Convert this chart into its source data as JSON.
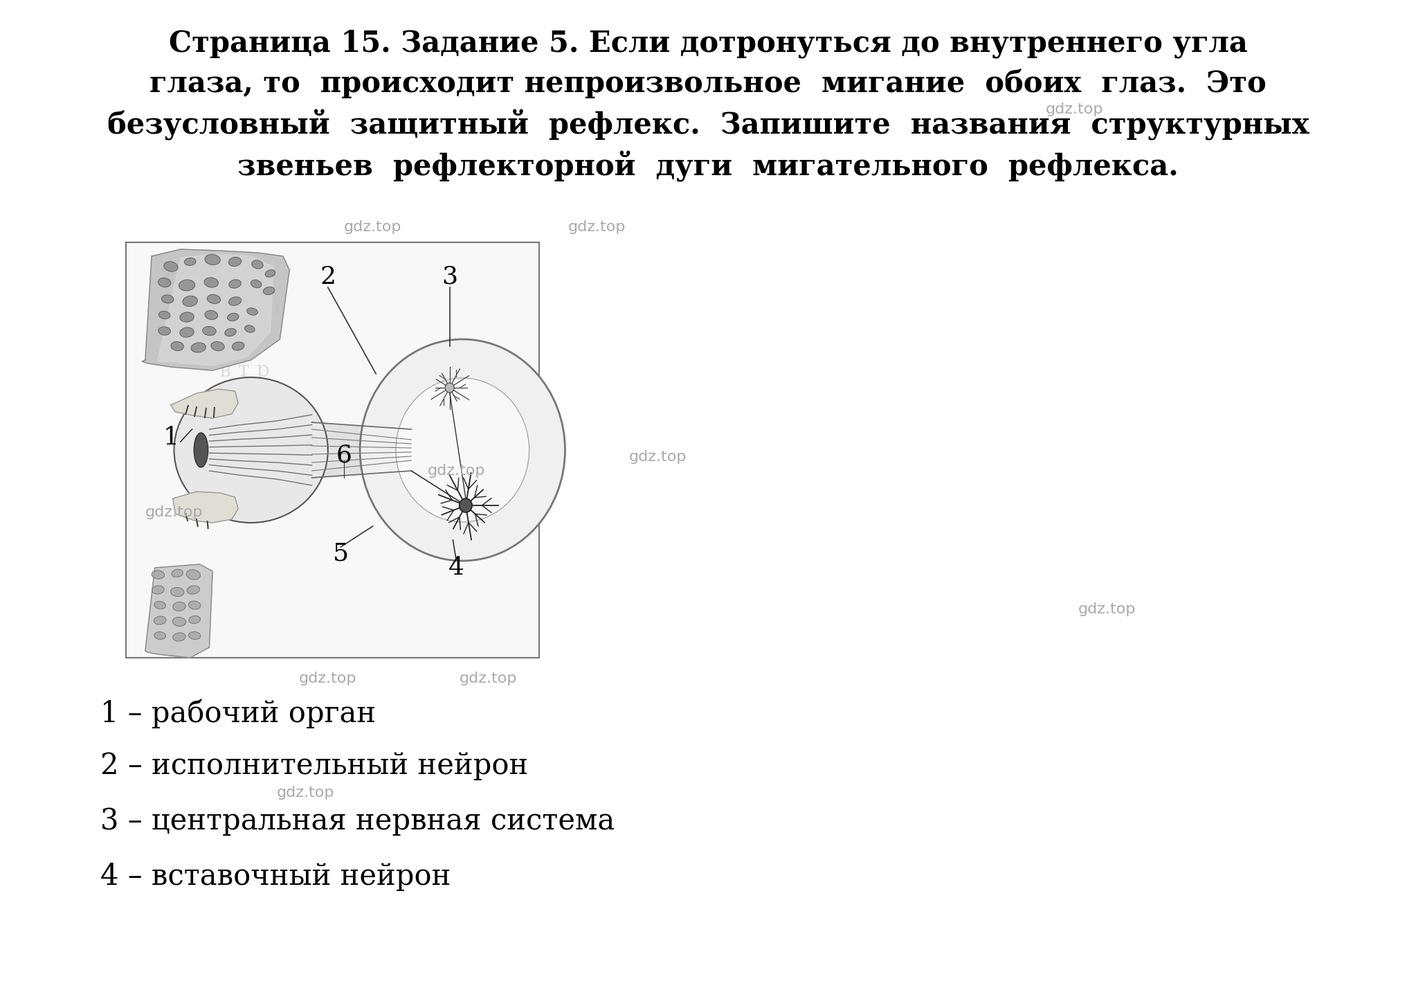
{
  "title_bold_part": "Страница 15. Задание 5. Если дотронуться до внутреннего угла",
  "title_line2": "глаза, то  происходит непроизвольное  мигание  обоих  глаз.  Это",
  "title_line3": "безусловный  защитный  рефлекс.  Запишите  названия  структурных",
  "title_line4": "звеньев  рефлекторной  дуги  мигательного  рефлекса.",
  "label1": "1 – рабочий орган",
  "label2": "2 – исполнительный нейрон",
  "label3": "3 – центральная нервная система",
  "label4": "4 – вставочный нейрон",
  "watermark": "gdz.top",
  "bg_color": "#ffffff"
}
